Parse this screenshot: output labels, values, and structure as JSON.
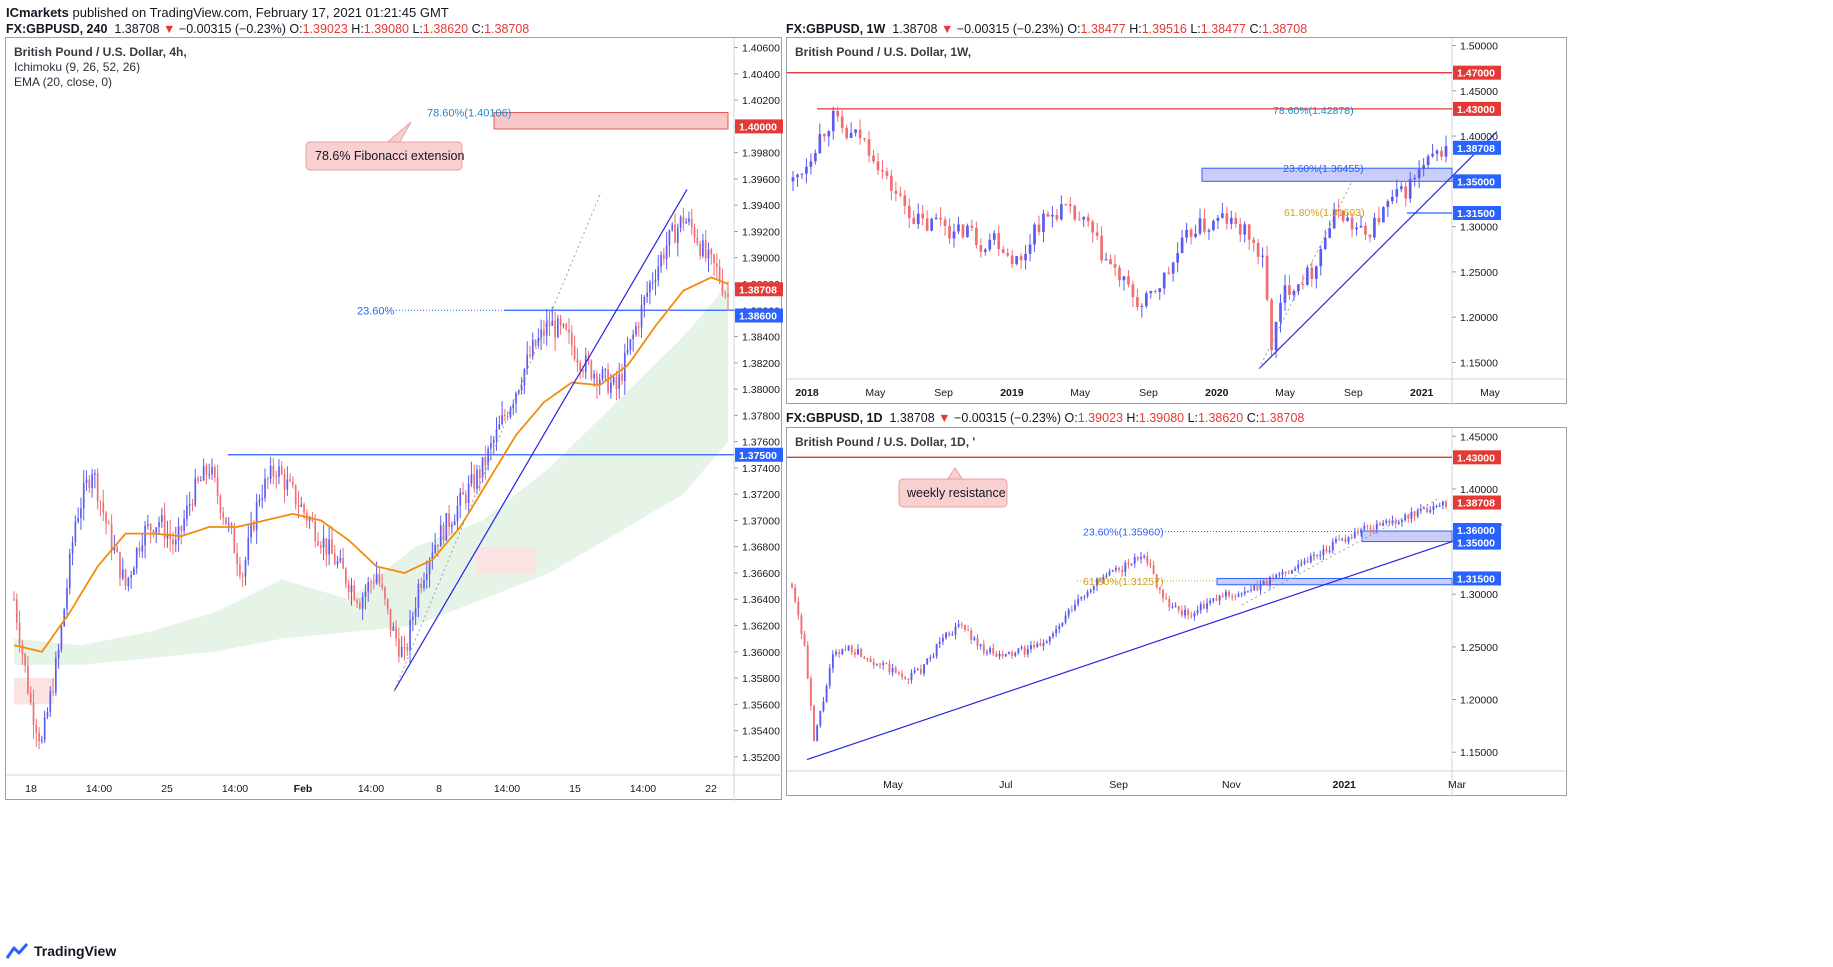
{
  "publish": {
    "author": "ICmarkets",
    "text": " published on TradingView.com, February 17, 2021 01:21:45 GMT"
  },
  "brand": {
    "name": "TradingView",
    "icon": "tradingview-logo-icon"
  },
  "colors": {
    "up": "#5b5bf0",
    "down": "#f06e72",
    "ema": "#f28c0f",
    "trend": "#2424e6",
    "resistance": "#e53935",
    "support": "#2962ff",
    "cloud_up": "#e3f3e4",
    "cloud_down": "#fbe3e3"
  },
  "panels": [
    {
      "id": "h4",
      "header": {
        "symbol": "FX:GBPUSD, 240",
        "last": "1.38708",
        "arrow": "▼",
        "change": "−0.00315 (−0.23%)",
        "o_label": "O:",
        "o": "1.39023",
        "h_label": "H:",
        "h": "1.39080",
        "l_label": "L:",
        "l": "1.38620",
        "c_label": "C:",
        "c": "1.38708"
      },
      "legend": [
        "British Pound / U.S. Dollar, 4h,",
        "Ichimoku (9, 26, 52, 26)",
        "EMA (20, close, 0)"
      ],
      "currency": "USD",
      "y_ticks": [
        "1.40600",
        "1.40400",
        "1.40200",
        "1.40000",
        "1.39800",
        "1.39600",
        "1.39400",
        "1.39200",
        "1.39000",
        "1.38800",
        "1.38600",
        "1.38400",
        "1.38200",
        "1.38000",
        "1.37800",
        "1.37600",
        "1.37400",
        "1.37200",
        "1.37000",
        "1.36800",
        "1.36600",
        "1.36400",
        "1.36200",
        "1.36000",
        "1.35800",
        "1.35600",
        "1.35400",
        "1.35200"
      ],
      "x_ticks": [
        "18",
        "14:00",
        "25",
        "14:00",
        "Feb",
        "14:00",
        "8",
        "14:00",
        "15",
        "14:00",
        "22"
      ],
      "price_tags": [
        {
          "label": "1.40000",
          "color": "#e53935"
        },
        {
          "label": "1.38708",
          "color": "#e53935"
        },
        {
          "label": "1.38600",
          "color": "#2962ff"
        },
        {
          "label": "1.37500",
          "color": "#2962ff"
        }
      ],
      "fib_labels": [
        {
          "text": "78.60%(1.40106)",
          "color": "#1e88c8"
        },
        {
          "text": "23.60%",
          "color": "#2962ff"
        }
      ],
      "annotation": "78.6% Fibonacci extension"
    },
    {
      "id": "w1",
      "header": {
        "symbol": "FX:GBPUSD, 1W",
        "last": "1.38708",
        "arrow": "▼",
        "change": "−0.00315 (−0.23%)",
        "o_label": "O:",
        "o": "1.38477",
        "h_label": "H:",
        "h": "1.39516",
        "l_label": "L:",
        "l": "1.38477",
        "c_label": "C:",
        "c": "1.38708"
      },
      "legend": [
        "British Pound / U.S. Dollar, 1W,"
      ],
      "currency": "USD",
      "y_ticks": [
        "1.50000",
        "1.45000",
        "1.40000",
        "1.35000",
        "1.30000",
        "1.25000",
        "1.20000",
        "1.15000"
      ],
      "x_ticks": [
        "2018",
        "May",
        "Sep",
        "2019",
        "May",
        "Sep",
        "2020",
        "May",
        "Sep",
        "2021",
        "May"
      ],
      "price_tags": [
        {
          "label": "1.47000",
          "color": "#e53935"
        },
        {
          "label": "1.43000",
          "color": "#e53935"
        },
        {
          "label": "1.38708",
          "color": "#2962ff"
        },
        {
          "label": "1.35000",
          "color": "#2962ff"
        },
        {
          "label": "1.31500",
          "color": "#2962ff"
        }
      ],
      "fib_labels": [
        {
          "text": "78.60%(1.42878)",
          "color": "#1e88c8"
        },
        {
          "text": "23.60%(1.36455)",
          "color": "#2962ff"
        },
        {
          "text": "61.80%(1.31603)",
          "color": "#d4a017"
        }
      ]
    },
    {
      "id": "d1",
      "header": {
        "symbol": "FX:GBPUSD, 1D",
        "last": "1.38708",
        "arrow": "▼",
        "change": "−0.00315 (−0.23%)",
        "o_label": "O:",
        "o": "1.39023",
        "h_label": "H:",
        "h": "1.39080",
        "l_label": "L:",
        "l": "1.38620",
        "c_label": "C:",
        "c": "1.38708"
      },
      "legend": [
        "British Pound / U.S. Dollar, 1D, '"
      ],
      "y_ticks": [
        "1.45000",
        "1.40000",
        "1.35000",
        "1.30000",
        "1.25000",
        "1.20000",
        "1.15000"
      ],
      "x_ticks": [
        "May",
        "Jul",
        "Sep",
        "Nov",
        "2021",
        "Mar"
      ],
      "price_tags": [
        {
          "label": "1.43000",
          "color": "#e53935"
        },
        {
          "label": "1.38708",
          "color": "#e53935"
        },
        {
          "label": "1.36000",
          "color": "#2962ff"
        },
        {
          "label": "1.35000",
          "color": "#2962ff"
        },
        {
          "label": "1.31500",
          "color": "#2962ff"
        }
      ],
      "fib_labels": [
        {
          "text": "23.60%(1.35960)",
          "color": "#2962ff"
        },
        {
          "text": "61.80%(1.31257)",
          "color": "#d4a017"
        }
      ],
      "annotation": "weekly resistance"
    }
  ],
  "chart_data": [
    {
      "type": "candlestick",
      "title": "British Pound / U.S. Dollar, 4h",
      "indicators": [
        "Ichimoku (9, 26, 52, 26)",
        "EMA (20, close, 0)"
      ],
      "ylim": [
        1.351,
        1.4065
      ],
      "x_ticks": [
        "18",
        "14:00",
        "25",
        "14:00",
        "Feb",
        "14:00",
        "8",
        "14:00",
        "15",
        "14:00",
        "22"
      ],
      "price_path": [
        [
          0,
          1.364
        ],
        [
          6,
          1.356
        ],
        [
          10,
          1.353
        ],
        [
          16,
          1.36
        ],
        [
          22,
          1.37
        ],
        [
          28,
          1.374
        ],
        [
          34,
          1.369
        ],
        [
          40,
          1.365
        ],
        [
          46,
          1.369
        ],
        [
          52,
          1.37
        ],
        [
          58,
          1.368
        ],
        [
          64,
          1.372
        ],
        [
          70,
          1.374
        ],
        [
          76,
          1.37
        ],
        [
          82,
          1.366
        ],
        [
          88,
          1.372
        ],
        [
          94,
          1.374
        ],
        [
          100,
          1.372
        ],
        [
          106,
          1.37
        ],
        [
          112,
          1.368
        ],
        [
          118,
          1.366
        ],
        [
          124,
          1.364
        ],
        [
          130,
          1.366
        ],
        [
          135,
          1.362
        ],
        [
          140,
          1.3595
        ],
        [
          145,
          1.365
        ],
        [
          150,
          1.368
        ],
        [
          156,
          1.37
        ],
        [
          162,
          1.372
        ],
        [
          168,
          1.374
        ],
        [
          174,
          1.377
        ],
        [
          180,
          1.38
        ],
        [
          186,
          1.383
        ],
        [
          192,
          1.385
        ],
        [
          198,
          1.384
        ],
        [
          204,
          1.382
        ],
        [
          210,
          1.381
        ],
        [
          216,
          1.38
        ],
        [
          222,
          1.384
        ],
        [
          228,
          1.388
        ],
        [
          234,
          1.391
        ],
        [
          240,
          1.393
        ],
        [
          244,
          1.392
        ],
        [
          248,
          1.39
        ],
        [
          252,
          1.389
        ],
        [
          256,
          1.387
        ]
      ],
      "ema_path": [
        [
          0,
          1.3605
        ],
        [
          10,
          1.36
        ],
        [
          20,
          1.363
        ],
        [
          30,
          1.3665
        ],
        [
          40,
          1.369
        ],
        [
          50,
          1.369
        ],
        [
          60,
          1.3688
        ],
        [
          70,
          1.3695
        ],
        [
          80,
          1.3695
        ],
        [
          90,
          1.37
        ],
        [
          100,
          1.3705
        ],
        [
          110,
          1.37
        ],
        [
          120,
          1.3685
        ],
        [
          130,
          1.3665
        ],
        [
          140,
          1.366
        ],
        [
          150,
          1.367
        ],
        [
          160,
          1.3695
        ],
        [
          170,
          1.373
        ],
        [
          180,
          1.3765
        ],
        [
          190,
          1.379
        ],
        [
          200,
          1.3805
        ],
        [
          210,
          1.3803
        ],
        [
          220,
          1.3818
        ],
        [
          230,
          1.3848
        ],
        [
          240,
          1.3875
        ],
        [
          250,
          1.3885
        ],
        [
          256,
          1.388
        ]
      ],
      "levels": [
        {
          "label": "resistance",
          "value": 1.4
        },
        {
          "label": "last",
          "value": 1.38708
        },
        {
          "label": "support",
          "value": 1.386
        },
        {
          "label": "support",
          "value": 1.375
        }
      ],
      "fibonacci": [
        {
          "level": "78.60%",
          "value": 1.40106
        },
        {
          "level": "23.60%",
          "value": 1.386
        }
      ],
      "annotation": "78.6% Fibonacci extension"
    },
    {
      "type": "candlestick",
      "title": "British Pound / U.S. Dollar, 1W",
      "ylim": [
        1.135,
        1.505
      ],
      "x_ticks": [
        "2018",
        "May",
        "Sep",
        "2019",
        "May",
        "Sep",
        "2020",
        "May",
        "Sep",
        "2021",
        "May"
      ],
      "price_path": [
        [
          0,
          1.35
        ],
        [
          3,
          1.37
        ],
        [
          6,
          1.4
        ],
        [
          9,
          1.42
        ],
        [
          12,
          1.4
        ],
        [
          15,
          1.4
        ],
        [
          18,
          1.38
        ],
        [
          21,
          1.35
        ],
        [
          24,
          1.33
        ],
        [
          27,
          1.31
        ],
        [
          30,
          1.3
        ],
        [
          33,
          1.31
        ],
        [
          36,
          1.29
        ],
        [
          39,
          1.3
        ],
        [
          42,
          1.28
        ],
        [
          45,
          1.29
        ],
        [
          48,
          1.27
        ],
        [
          51,
          1.26
        ],
        [
          54,
          1.3
        ],
        [
          57,
          1.31
        ],
        [
          60,
          1.32
        ],
        [
          63,
          1.31
        ],
        [
          66,
          1.3
        ],
        [
          69,
          1.27
        ],
        [
          72,
          1.25
        ],
        [
          75,
          1.23
        ],
        [
          78,
          1.21
        ],
        [
          81,
          1.23
        ],
        [
          84,
          1.25
        ],
        [
          87,
          1.28
        ],
        [
          90,
          1.3
        ],
        [
          93,
          1.3
        ],
        [
          96,
          1.31
        ],
        [
          99,
          1.3
        ],
        [
          102,
          1.29
        ],
        [
          105,
          1.26
        ],
        [
          107,
          1.17
        ],
        [
          110,
          1.23
        ],
        [
          113,
          1.24
        ],
        [
          116,
          1.25
        ],
        [
          119,
          1.29
        ],
        [
          122,
          1.32
        ],
        [
          125,
          1.3
        ],
        [
          128,
          1.29
        ],
        [
          131,
          1.31
        ],
        [
          134,
          1.33
        ],
        [
          137,
          1.34
        ],
        [
          140,
          1.36
        ],
        [
          143,
          1.375
        ],
        [
          146,
          1.387
        ]
      ],
      "levels": [
        {
          "label": "resistance",
          "value": 1.47
        },
        {
          "label": "resistance",
          "value": 1.43
        },
        {
          "label": "last",
          "value": 1.38708
        },
        {
          "label": "support",
          "value": 1.35
        },
        {
          "label": "support",
          "value": 1.315
        }
      ],
      "fibonacci": [
        {
          "level": "78.60%",
          "value": 1.42878
        },
        {
          "level": "23.60%",
          "value": 1.36455
        },
        {
          "level": "61.80%",
          "value": 1.31603
        }
      ]
    },
    {
      "type": "candlestick",
      "title": "British Pound / U.S. Dollar, 1D",
      "ylim": [
        1.135,
        1.455
      ],
      "x_ticks": [
        "May",
        "Jul",
        "Sep",
        "Nov",
        "2021",
        "Mar"
      ],
      "price_path": [
        [
          0,
          1.31
        ],
        [
          4,
          1.25
        ],
        [
          7,
          1.16
        ],
        [
          10,
          1.2
        ],
        [
          13,
          1.24
        ],
        [
          18,
          1.25
        ],
        [
          24,
          1.24
        ],
        [
          30,
          1.23
        ],
        [
          36,
          1.22
        ],
        [
          42,
          1.23
        ],
        [
          48,
          1.26
        ],
        [
          54,
          1.27
        ],
        [
          60,
          1.25
        ],
        [
          66,
          1.24
        ],
        [
          72,
          1.245
        ],
        [
          78,
          1.25
        ],
        [
          84,
          1.265
        ],
        [
          90,
          1.29
        ],
        [
          96,
          1.31
        ],
        [
          102,
          1.32
        ],
        [
          108,
          1.33
        ],
        [
          112,
          1.34
        ],
        [
          116,
          1.31
        ],
        [
          120,
          1.29
        ],
        [
          126,
          1.28
        ],
        [
          132,
          1.29
        ],
        [
          138,
          1.3
        ],
        [
          144,
          1.3
        ],
        [
          150,
          1.31
        ],
        [
          156,
          1.32
        ],
        [
          162,
          1.33
        ],
        [
          168,
          1.34
        ],
        [
          174,
          1.35
        ],
        [
          180,
          1.36
        ],
        [
          186,
          1.365
        ],
        [
          192,
          1.37
        ],
        [
          198,
          1.375
        ],
        [
          204,
          1.383
        ],
        [
          208,
          1.387
        ]
      ],
      "levels": [
        {
          "label": "resistance",
          "value": 1.43
        },
        {
          "label": "last",
          "value": 1.38708
        },
        {
          "label": "support",
          "value": 1.36
        },
        {
          "label": "support",
          "value": 1.35
        },
        {
          "label": "support",
          "value": 1.315
        }
      ],
      "fibonacci": [
        {
          "level": "23.60%",
          "value": 1.3596
        },
        {
          "level": "61.80%",
          "value": 1.31257
        }
      ],
      "annotation": "weekly resistance"
    }
  ]
}
